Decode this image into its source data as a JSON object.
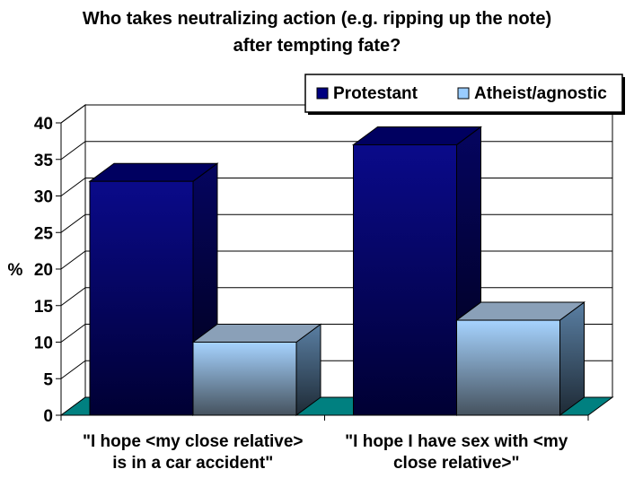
{
  "title_lines": [
    "Who takes neutralizing action (e.g. ripping up the note)",
    "after tempting fate?"
  ],
  "chart_data": {
    "type": "bar",
    "title": "Who takes neutralizing action (e.g. ripping up the note) after tempting fate?",
    "ylabel": "%",
    "xlabel": "",
    "ylim": [
      0,
      40
    ],
    "yticks": [
      0,
      5,
      10,
      15,
      20,
      25,
      30,
      35,
      40
    ],
    "grid": true,
    "legend_position": "top-right",
    "categories": [
      [
        "\"I hope <my close relative>",
        "is in a car accident\""
      ],
      [
        "\"I hope I have sex with <my",
        "close relative>\""
      ]
    ],
    "series": [
      {
        "name": "Protestant",
        "values": [
          32,
          37
        ],
        "color": "#000080"
      },
      {
        "name": "Atheist/agnostic",
        "values": [
          10,
          13
        ],
        "color": "#99CCFF"
      }
    ],
    "floor_color": "#008080"
  }
}
